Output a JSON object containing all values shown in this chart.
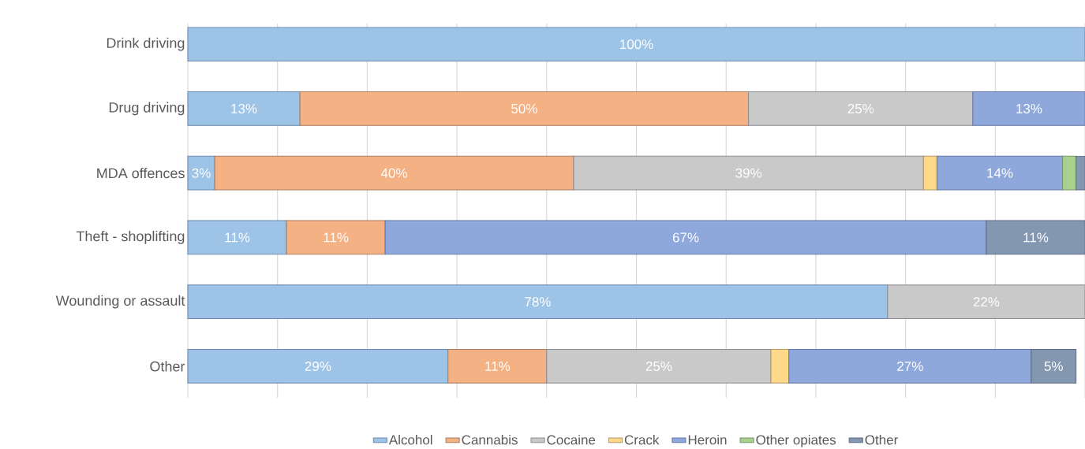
{
  "chart_data": {
    "type": "bar",
    "orientation": "horizontal",
    "stacked": true,
    "categories": [
      "Drink driving",
      "Drug driving",
      "MDA offences",
      "Theft - shoplifting",
      "Wounding or assault",
      "Other"
    ],
    "series": [
      {
        "name": "Alcohol",
        "color": "#9dc3e6",
        "values": [
          100,
          12.5,
          3,
          11,
          78,
          29
        ],
        "value_labels": [
          "100%",
          "13%",
          "3%",
          "11%",
          "78%",
          "29%"
        ]
      },
      {
        "name": "Cannabis",
        "color": "#f4b183",
        "values": [
          null,
          50,
          40,
          11,
          null,
          11
        ],
        "value_labels": [
          null,
          "50%",
          "40%",
          "11%",
          null,
          "11%"
        ]
      },
      {
        "name": "Cocaine",
        "color": "#c9c9c9",
        "values": [
          null,
          25,
          39,
          null,
          22,
          25
        ],
        "value_labels": [
          null,
          "25%",
          "39%",
          null,
          "22%",
          "25%"
        ]
      },
      {
        "name": "Crack",
        "color": "#ffd98a",
        "values": [
          null,
          null,
          1.5,
          null,
          null,
          2
        ],
        "value_labels": [
          null,
          null,
          null,
          null,
          null,
          null
        ]
      },
      {
        "name": "Heroin",
        "color": "#8fa8dc",
        "values": [
          null,
          12.5,
          14,
          67,
          null,
          27
        ],
        "value_labels": [
          null,
          "13%",
          "14%",
          "67%",
          null,
          "27%"
        ]
      },
      {
        "name": "Other opiates",
        "color": "#a9d18e",
        "values": [
          null,
          null,
          1.5,
          null,
          null,
          null
        ],
        "value_labels": [
          null,
          null,
          null,
          null,
          null,
          null
        ]
      },
      {
        "name": "Other",
        "color": "#8497b0",
        "values": [
          null,
          null,
          1,
          11,
          null,
          5
        ],
        "value_labels": [
          null,
          null,
          null,
          "11%",
          null,
          "5%"
        ]
      }
    ],
    "xlim": [
      0,
      100
    ],
    "xticks": [
      {
        "value": 0,
        "label": null
      },
      {
        "value": 10,
        "label": null
      },
      {
        "value": 20,
        "label": null
      },
      {
        "value": 30,
        "label": null
      },
      {
        "value": 40,
        "label": null
      },
      {
        "value": 50,
        "label": null
      },
      {
        "value": 60,
        "label": null
      },
      {
        "value": 70,
        "label": null
      },
      {
        "value": 80,
        "label": null
      },
      {
        "value": 90,
        "label": null
      },
      {
        "value": 100,
        "label": null
      }
    ],
    "tick_labels": "y",
    "grid": "x",
    "legend": "bottom"
  }
}
